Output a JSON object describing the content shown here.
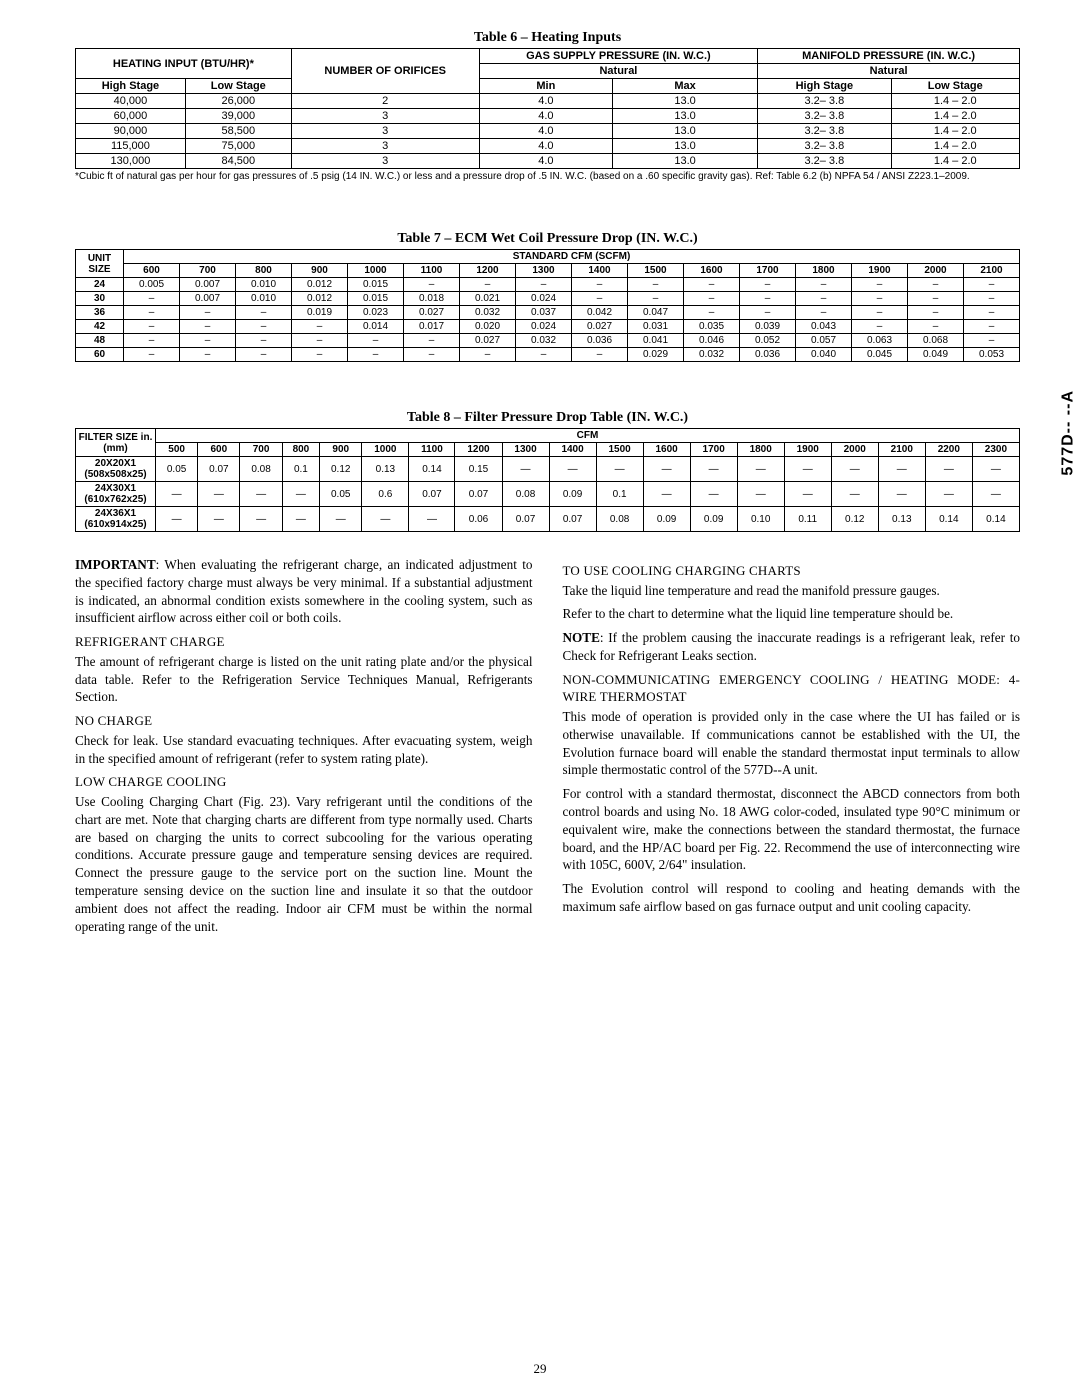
{
  "sideLabel": "577D-- --A",
  "pageNum": "29",
  "table6": {
    "title": "Table 6 – Heating Inputs",
    "headers": {
      "heatingInput": "HEATING INPUT (BTU/HR)*",
      "numOrifices": "NUMBER OF ORIFICES",
      "gasSupply": "GAS SUPPLY PRESSURE (IN. W.C.)",
      "manifold": "MANIFOLD PRESSURE (IN. W.C.)",
      "natural": "Natural",
      "highStage": "High Stage",
      "lowStage": "Low Stage",
      "min": "Min",
      "max": "Max"
    },
    "rows": [
      [
        "40,000",
        "26,000",
        "2",
        "4.0",
        "13.0",
        "3.2– 3.8",
        "1.4 – 2.0"
      ],
      [
        "60,000",
        "39,000",
        "3",
        "4.0",
        "13.0",
        "3.2– 3.8",
        "1.4 – 2.0"
      ],
      [
        "90,000",
        "58,500",
        "3",
        "4.0",
        "13.0",
        "3.2– 3.8",
        "1.4 – 2.0"
      ],
      [
        "115,000",
        "75,000",
        "3",
        "4.0",
        "13.0",
        "3.2– 3.8",
        "1.4 – 2.0"
      ],
      [
        "130,000",
        "84,500",
        "3",
        "4.0",
        "13.0",
        "3.2– 3.8",
        "1.4 – 2.0"
      ]
    ],
    "footnote": "*Cubic ft of natural gas per hour for gas pressures of .5 psig (14 IN. W.C.) or less and a pressure drop of .5 IN. W.C. (based on a .60 specific gravity gas). Ref: Table 6.2 (b) NPFA 54 / ANSI Z223.1–2009."
  },
  "table7": {
    "title": "Table 7 – ECM Wet Coil Pressure Drop (IN. W.C.)",
    "unitSize": "UNIT SIZE",
    "stdCfm": "STANDARD CFM (SCFM)",
    "cols": [
      "600",
      "700",
      "800",
      "900",
      "1000",
      "1100",
      "1200",
      "1300",
      "1400",
      "1500",
      "1600",
      "1700",
      "1800",
      "1900",
      "2000",
      "2100"
    ],
    "rows": [
      {
        "size": "24",
        "cells": [
          "0.005",
          "0.007",
          "0.010",
          "0.012",
          "0.015",
          "–",
          "–",
          "–",
          "–",
          "–",
          "–",
          "–",
          "–",
          "–",
          "–",
          "–"
        ]
      },
      {
        "size": "30",
        "cells": [
          "–",
          "0.007",
          "0.010",
          "0.012",
          "0.015",
          "0.018",
          "0.021",
          "0.024",
          "–",
          "–",
          "–",
          "–",
          "–",
          "–",
          "–",
          "–"
        ]
      },
      {
        "size": "36",
        "cells": [
          "–",
          "–",
          "–",
          "0.019",
          "0.023",
          "0.027",
          "0.032",
          "0.037",
          "0.042",
          "0.047",
          "–",
          "–",
          "–",
          "–",
          "–",
          "–"
        ]
      },
      {
        "size": "42",
        "cells": [
          "–",
          "–",
          "–",
          "–",
          "0.014",
          "0.017",
          "0.020",
          "0.024",
          "0.027",
          "0.031",
          "0.035",
          "0.039",
          "0.043",
          "–",
          "–",
          "–"
        ]
      },
      {
        "size": "48",
        "cells": [
          "–",
          "–",
          "–",
          "–",
          "–",
          "–",
          "0.027",
          "0.032",
          "0.036",
          "0.041",
          "0.046",
          "0.052",
          "0.057",
          "0.063",
          "0.068",
          "–"
        ]
      },
      {
        "size": "60",
        "cells": [
          "–",
          "–",
          "–",
          "–",
          "–",
          "–",
          "–",
          "–",
          "–",
          "0.029",
          "0.032",
          "0.036",
          "0.040",
          "0.045",
          "0.049",
          "0.053"
        ]
      }
    ]
  },
  "table8": {
    "title": "Table 8 – Filter Pressure Drop Table (IN. W.C.)",
    "filterSize": "FILTER SIZE in. (mm)",
    "cfm": "CFM",
    "cols": [
      "500",
      "600",
      "700",
      "800",
      "900",
      "1000",
      "1100",
      "1200",
      "1300",
      "1400",
      "1500",
      "1600",
      "1700",
      "1800",
      "1900",
      "2000",
      "2100",
      "2200",
      "2300"
    ],
    "rows": [
      {
        "size": "20X20X1 (508x508x25)",
        "cells": [
          "0.05",
          "0.07",
          "0.08",
          "0.1",
          "0.12",
          "0.13",
          "0.14",
          "0.15",
          "—",
          "—",
          "—",
          "—",
          "—",
          "—",
          "—",
          "—",
          "—",
          "—",
          "—"
        ]
      },
      {
        "size": "24X30X1 (610x762x25)",
        "cells": [
          "—",
          "—",
          "—",
          "—",
          "0.05",
          "0.6",
          "0.07",
          "0.07",
          "0.08",
          "0.09",
          "0.1",
          "—",
          "—",
          "—",
          "—",
          "—",
          "—",
          "—",
          "—"
        ]
      },
      {
        "size": "24X36X1 (610x914x25)",
        "cells": [
          "—",
          "—",
          "—",
          "—",
          "—",
          "—",
          "—",
          "0.06",
          "0.07",
          "0.07",
          "0.08",
          "0.09",
          "0.09",
          "0.10",
          "0.11",
          "0.12",
          "0.13",
          "0.14",
          "0.14"
        ]
      }
    ]
  },
  "left": {
    "importantLabel": "IMPORTANT",
    "importantText": ": When evaluating the refrigerant charge, an indicated adjustment to the specified factory charge must always be very minimal. If a substantial adjustment is indicated, an abnormal condition exists somewhere in the cooling system, such as insufficient airflow across either coil or both coils.",
    "refChargeHead": "REFRIGERANT CHARGE",
    "refChargeText": "The amount of refrigerant charge is listed on the unit rating plate and/or the physical data table. Refer to the Refrigeration Service Techniques Manual, Refrigerants Section.",
    "noChargeHead": "NO CHARGE",
    "noChargeText": "Check for leak. Use standard evacuating techniques. After evacuating system, weigh in the specified amount of refrigerant (refer to system rating plate).",
    "lowChargeHead": "LOW CHARGE COOLING",
    "lowChargeText": "Use Cooling Charging Chart (Fig. 23). Vary refrigerant until the conditions of the chart are met. Note that charging charts are different from type normally used. Charts are based on charging the units to correct subcooling for the various operating conditions. Accurate pressure gauge and temperature sensing devices are required. Connect the pressure gauge to the service port on the suction line. Mount the temperature sensing device on the suction line and insulate it so that the outdoor ambient does not affect the reading. Indoor air CFM must be within the normal operating range of the unit."
  },
  "right": {
    "useChartsHead": "TO USE COOLING CHARGING CHARTS",
    "useChartsP1": "Take the liquid line temperature and read the manifold pressure gauges.",
    "useChartsP2": "Refer to the chart to determine what the liquid line temperature should be.",
    "noteLabel": "NOTE",
    "noteText": ": If the problem causing the inaccurate readings is a refrigerant leak, refer to Check for Refrigerant Leaks section.",
    "nonCommHead": "NON-COMMUNICATING EMERGENCY COOLING / HEATING MODE: 4-WIRE THERMOSTAT",
    "nonCommP1": "This mode of operation is provided only in the case where the UI has failed or is otherwise unavailable. If communications cannot be established with the UI, the Evolution furnace board will enable the standard thermostat input terminals to allow simple thermostatic control of the 577D--A unit.",
    "nonCommP2": "For control with a standard thermostat, disconnect the ABCD connectors from both control boards and using No. 18 AWG color-coded, insulated type 90°C minimum or equivalent wire, make the connections between the standard thermostat, the furnace board, and the HP/AC board per Fig. 22. Recommend the use of interconnecting wire with 105C, 600V, 2/64\" insulation.",
    "nonCommP3": "The Evolution control will respond to cooling and heating demands with the maximum safe airflow based on gas furnace output and unit cooling capacity."
  }
}
